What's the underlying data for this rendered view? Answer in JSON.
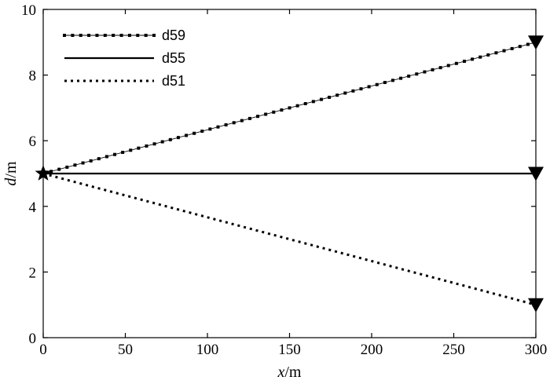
{
  "chart_data": {
    "type": "line",
    "xlabel": {
      "italic": "x",
      "rest": "/m"
    },
    "ylabel": {
      "italic": "d",
      "rest": "/m"
    },
    "xlim": [
      0,
      300
    ],
    "ylim": [
      0,
      10
    ],
    "xticks": [
      0,
      50,
      100,
      150,
      200,
      250,
      300
    ],
    "yticks": [
      0,
      2,
      4,
      6,
      8,
      10
    ],
    "grid": false,
    "legend_position": "top-left",
    "series": [
      {
        "name": "d59",
        "style": "line-with-square-markers",
        "x": [
          0,
          300
        ],
        "y": [
          5,
          9
        ]
      },
      {
        "name": "d55",
        "style": "solid",
        "x": [
          0,
          300
        ],
        "y": [
          5,
          5
        ]
      },
      {
        "name": "d51",
        "style": "dotted",
        "x": [
          0,
          300
        ],
        "y": [
          5,
          1
        ]
      }
    ],
    "start_marker": {
      "shape": "star",
      "x": 0,
      "y": 5
    },
    "end_marker": {
      "shape": "down-triangle"
    },
    "color": "#000000"
  }
}
